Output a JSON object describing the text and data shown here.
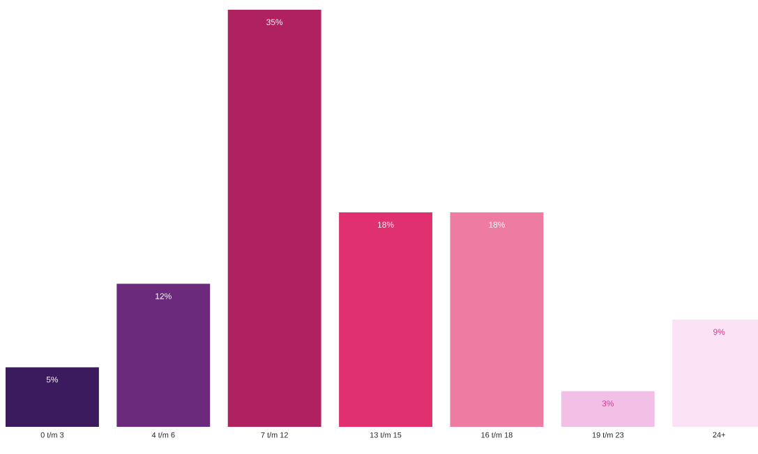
{
  "chart_data": {
    "type": "bar",
    "categories": [
      "0 t/m 3",
      "4 t/m 6",
      "7 t/m 12",
      "13 t/m 15",
      "16 t/m 18",
      "19 t/m 23",
      "24+"
    ],
    "values": [
      5,
      12,
      35,
      18,
      18,
      3,
      9
    ],
    "colors": [
      "#3b1a5e",
      "#6b2a7c",
      "#b0215f",
      "#e0306f",
      "#ee7ba2",
      "#f2c0e6",
      "#fbe3f5"
    ],
    "value_labels": [
      "5%",
      "12%",
      "35%",
      "18%",
      "18%",
      "3%",
      "9%"
    ]
  }
}
